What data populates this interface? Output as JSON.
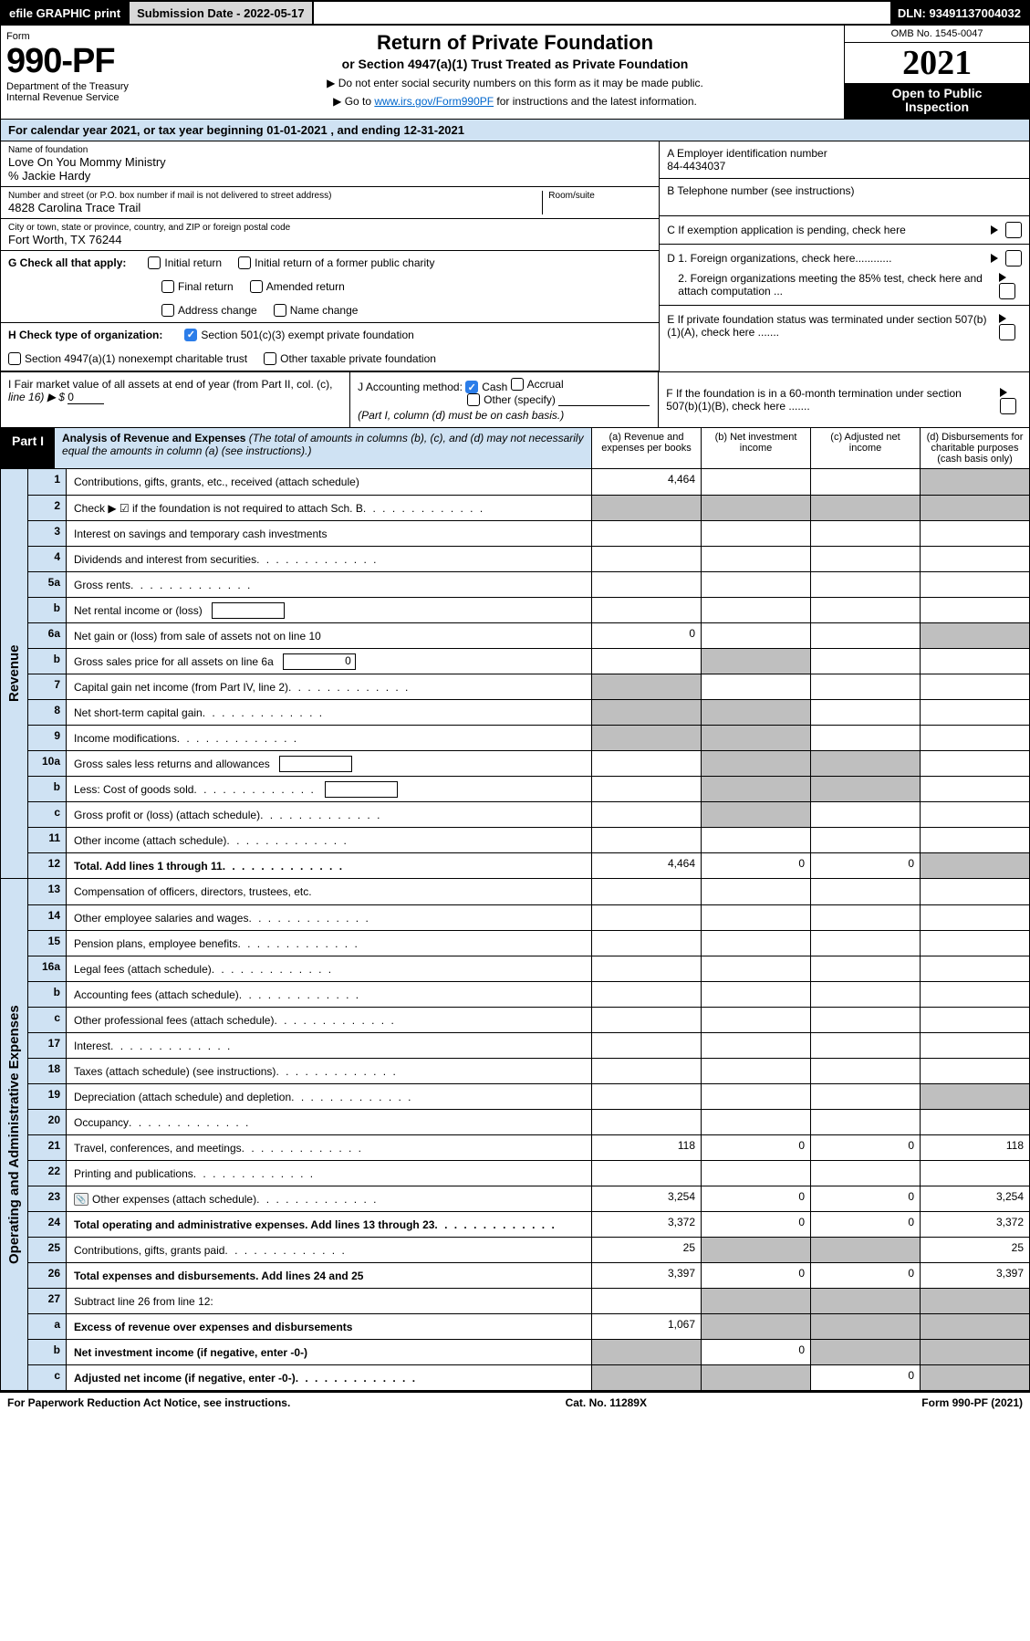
{
  "topbar": {
    "efile": "efile GRAPHIC print",
    "sub_label": "Submission Date - 2022-05-17",
    "dln": "DLN: 93491137004032"
  },
  "header": {
    "form_word": "Form",
    "form_num": "990-PF",
    "dept1": "Department of the Treasury",
    "dept2": "Internal Revenue Service",
    "title": "Return of Private Foundation",
    "subtitle": "or Section 4947(a)(1) Trust Treated as Private Foundation",
    "bullet1": "▶ Do not enter social security numbers on this form as it may be made public.",
    "bullet2_pre": "▶ Go to ",
    "bullet2_link": "www.irs.gov/Form990PF",
    "bullet2_post": " for instructions and the latest information.",
    "omb": "OMB No. 1545-0047",
    "year": "2021",
    "inspect1": "Open to Public",
    "inspect2": "Inspection"
  },
  "calbar": "For calendar year 2021, or tax year beginning 01-01-2021                     , and ending 12-31-2021",
  "info": {
    "name_lbl": "Name of foundation",
    "name": "Love On You Mommy Ministry",
    "care": "% Jackie Hardy",
    "addr_lbl": "Number and street (or P.O. box number if mail is not delivered to street address)",
    "addr": "4828 Carolina Trace Trail",
    "room_lbl": "Room/suite",
    "city_lbl": "City or town, state or province, country, and ZIP or foreign postal code",
    "city": "Fort Worth, TX  76244",
    "a_lbl": "A Employer identification number",
    "a_val": "84-4434037",
    "b_lbl": "B Telephone number (see instructions)",
    "c_lbl": "C If exemption application is pending, check here",
    "d1_lbl": "D 1. Foreign organizations, check here............",
    "d2_lbl": "2. Foreign organizations meeting the 85% test, check here and attach computation ...",
    "e_lbl": "E  If private foundation status was terminated under section 507(b)(1)(A), check here .......",
    "f_lbl": "F  If the foundation is in a 60-month termination under section 507(b)(1)(B), check here ......."
  },
  "g": {
    "lead": "G Check all that apply:",
    "opts": [
      "Initial return",
      "Final return",
      "Address change",
      "Initial return of a former public charity",
      "Amended return",
      "Name change"
    ]
  },
  "h": {
    "lead": "H Check type of organization:",
    "o1": "Section 501(c)(3) exempt private foundation",
    "o2": "Section 4947(a)(1) nonexempt charitable trust",
    "o3": "Other taxable private foundation"
  },
  "ij": {
    "i1": "I Fair market value of all assets at end of year (from Part II, col. (c),",
    "i2_pre": "line 16) ▶ $ ",
    "i2_val": "0",
    "j_lead": "J Accounting method:",
    "j_cash": "Cash",
    "j_accr": "Accrual",
    "j_other": "Other (specify)",
    "j_note": "(Part I, column (d) must be on cash basis.)"
  },
  "part1": {
    "tab": "Part I",
    "title": "Analysis of Revenue and Expenses",
    "note": " (The total of amounts in columns (b), (c), and (d) may not necessarily equal the amounts in column (a) (see instructions).)",
    "cols": {
      "a": "(a)   Revenue and expenses per books",
      "b": "(b)   Net investment income",
      "c": "(c)   Adjusted net income",
      "d": "(d)  Disbursements for charitable purposes (cash basis only)"
    }
  },
  "side": {
    "rev": "Revenue",
    "exp": "Operating and Administrative Expenses"
  },
  "rows": [
    {
      "n": "1",
      "d": "Contributions, gifts, grants, etc., received (attach schedule)",
      "a": "4,464",
      "b": "",
      "c": "",
      "dcol": "",
      "gd": true
    },
    {
      "n": "2",
      "d": "Check ▶ ☑ if the foundation is not required to attach Sch. B",
      "dots": true,
      "nocols": true
    },
    {
      "n": "3",
      "d": "Interest on savings and temporary cash investments"
    },
    {
      "n": "4",
      "d": "Dividends and interest from securities",
      "dots": true
    },
    {
      "n": "5a",
      "d": "Gross rents",
      "dots": true
    },
    {
      "n": "b",
      "d": "Net rental income or (loss)",
      "inner": true
    },
    {
      "n": "6a",
      "d": "Net gain or (loss) from sale of assets not on line 10",
      "a": "0",
      "gd": true
    },
    {
      "n": "b",
      "d": "Gross sales price for all assets on line 6a",
      "inner": true,
      "innerval": "0",
      "bgrey": true
    },
    {
      "n": "7",
      "d": "Capital gain net income (from Part IV, line 2)",
      "dots": true,
      "agrey": true
    },
    {
      "n": "8",
      "d": "Net short-term capital gain",
      "dots": true,
      "agrey": true,
      "bgrey": true
    },
    {
      "n": "9",
      "d": "Income modifications",
      "dots": true,
      "agrey": true,
      "bgrey": true
    },
    {
      "n": "10a",
      "d": "Gross sales less returns and allowances",
      "inner": true,
      "bgrey": true,
      "cgrey": true
    },
    {
      "n": "b",
      "d": "Less: Cost of goods sold",
      "dots": true,
      "inner": true,
      "bgrey": true,
      "cgrey": true
    },
    {
      "n": "c",
      "d": "Gross profit or (loss) (attach schedule)",
      "dots": true,
      "bgrey": true
    },
    {
      "n": "11",
      "d": "Other income (attach schedule)",
      "dots": true
    },
    {
      "n": "12",
      "d": "Total. Add lines 1 through 11",
      "dots": true,
      "bold": true,
      "a": "4,464",
      "b": "0",
      "c": "0",
      "gd": true
    }
  ],
  "exprows": [
    {
      "n": "13",
      "d": "Compensation of officers, directors, trustees, etc."
    },
    {
      "n": "14",
      "d": "Other employee salaries and wages",
      "dots": true
    },
    {
      "n": "15",
      "d": "Pension plans, employee benefits",
      "dots": true
    },
    {
      "n": "16a",
      "d": "Legal fees (attach schedule)",
      "dots": true
    },
    {
      "n": "b",
      "d": "Accounting fees (attach schedule)",
      "dots": true
    },
    {
      "n": "c",
      "d": "Other professional fees (attach schedule)",
      "dots": true
    },
    {
      "n": "17",
      "d": "Interest",
      "dots": true
    },
    {
      "n": "18",
      "d": "Taxes (attach schedule) (see instructions)",
      "dots": true
    },
    {
      "n": "19",
      "d": "Depreciation (attach schedule) and depletion",
      "dots": true,
      "gd": true
    },
    {
      "n": "20",
      "d": "Occupancy",
      "dots": true
    },
    {
      "n": "21",
      "d": "Travel, conferences, and meetings",
      "dots": true,
      "a": "118",
      "b": "0",
      "c": "0",
      "dcol": "118"
    },
    {
      "n": "22",
      "d": "Printing and publications",
      "dots": true
    },
    {
      "n": "23",
      "d": "Other expenses (attach schedule)",
      "dots": true,
      "attach": true,
      "a": "3,254",
      "b": "0",
      "c": "0",
      "dcol": "3,254"
    },
    {
      "n": "24",
      "d": "Total operating and administrative expenses. Add lines 13 through 23",
      "dots": true,
      "bold": true,
      "a": "3,372",
      "b": "0",
      "c": "0",
      "dcol": "3,372"
    },
    {
      "n": "25",
      "d": "Contributions, gifts, grants paid",
      "dots": true,
      "a": "25",
      "bgrey": true,
      "cgrey": true,
      "dcol": "25"
    },
    {
      "n": "26",
      "d": "Total expenses and disbursements. Add lines 24 and 25",
      "bold": true,
      "a": "3,397",
      "b": "0",
      "c": "0",
      "dcol": "3,397"
    },
    {
      "n": "27",
      "d": "Subtract line 26 from line 12:",
      "bgrey": true,
      "cgrey": true,
      "gd": true
    },
    {
      "n": "a",
      "d": "Excess of revenue over expenses and disbursements",
      "bold": true,
      "a": "1,067",
      "bgrey": true,
      "cgrey": true,
      "gd": true
    },
    {
      "n": "b",
      "d": "Net investment income (if negative, enter -0-)",
      "bold": true,
      "agrey": true,
      "b": "0",
      "cgrey": true,
      "gd": true
    },
    {
      "n": "c",
      "d": "Adjusted net income (if negative, enter -0-)",
      "bold": true,
      "dots": true,
      "agrey": true,
      "bgrey": true,
      "c": "0",
      "gd": true
    }
  ],
  "footer": {
    "left": "For Paperwork Reduction Act Notice, see instructions.",
    "mid": "Cat. No. 11289X",
    "right": "Form 990-PF (2021)"
  },
  "colors": {
    "band_bg": "#cfe2f3",
    "grey_cell": "#bfbfbf",
    "link": "#0066cc",
    "check_blue": "#2b7de9"
  }
}
